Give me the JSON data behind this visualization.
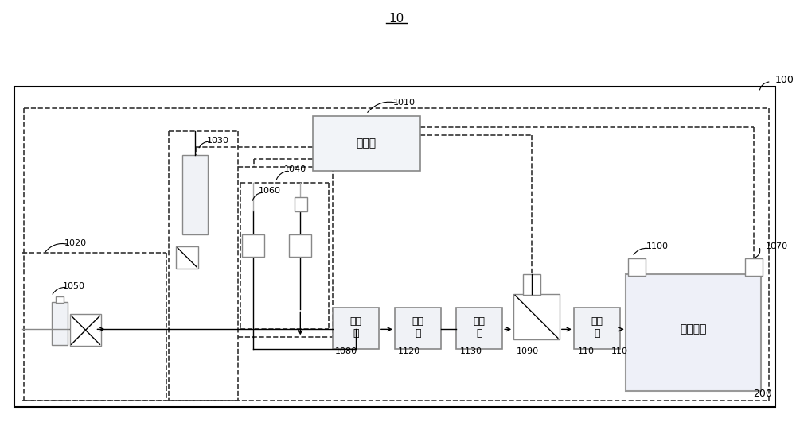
{
  "bg_color": "#ffffff",
  "label_100": "100",
  "label_10": "10",
  "label_200": "200",
  "label_1010": "1010",
  "label_1020": "1020",
  "label_1030": "1030",
  "label_1040": "1040",
  "label_1050": "1050",
  "label_1060": "1060",
  "label_1070": "1070",
  "label_1080": "1080",
  "label_1090": "1090",
  "label_1100": "1100",
  "label_1110": "110",
  "label_1120": "1120",
  "label_1130": "1130",
  "text_controller": "控制器",
  "text_mixer_1": "混合",
  "text_mixer_2": "器",
  "text_booster_1": "增压",
  "text_booster_2": "器",
  "text_cooler_1": "冷却",
  "text_cooler_2": "器",
  "text_arrester_1": "阻火",
  "text_arrester_2": "器",
  "text_power": "动力装置"
}
